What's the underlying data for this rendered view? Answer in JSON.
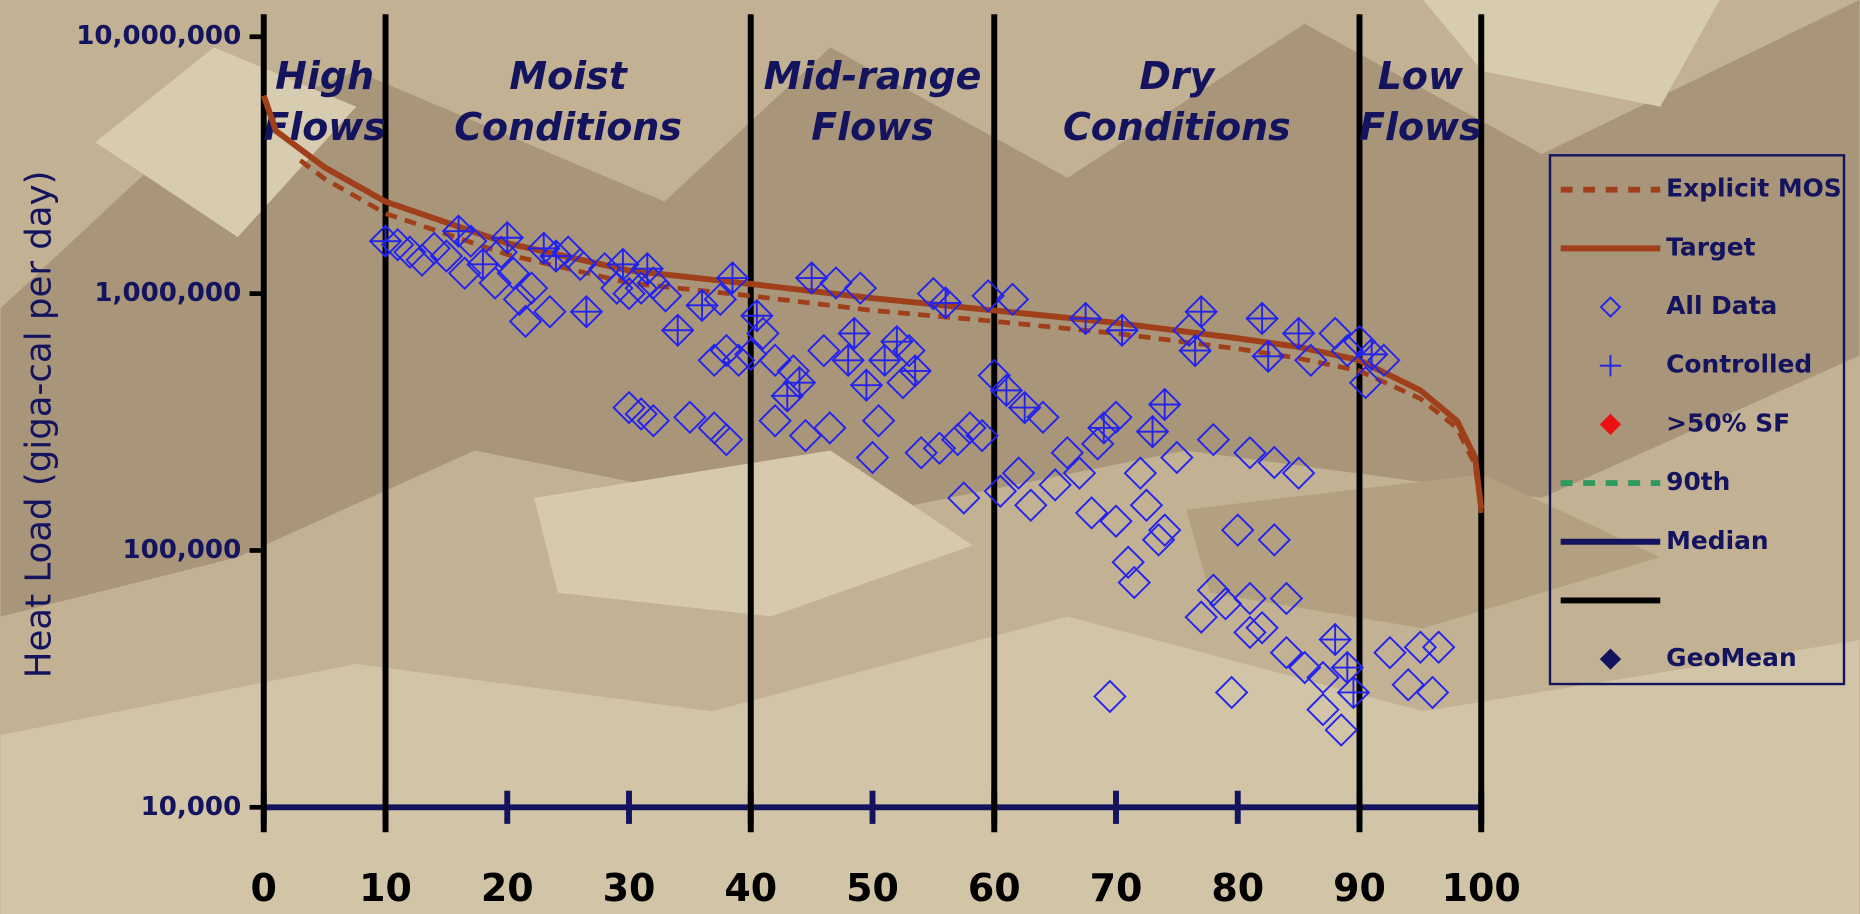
{
  "chart_data": {
    "type": "scatter",
    "y_label": "Heat Load (giga-cal per day)",
    "log_y": true,
    "xlim": [
      0,
      100
    ],
    "ylim": [
      10000,
      10000000
    ],
    "xticks": [
      0,
      10,
      20,
      30,
      40,
      50,
      60,
      70,
      80,
      90,
      100
    ],
    "yticks": [
      {
        "value": 10000,
        "label": "10,000"
      },
      {
        "value": 100000,
        "label": "100,000"
      },
      {
        "value": 1000000,
        "label": "1,000,000"
      },
      {
        "value": 10000000,
        "label": "10,000,000"
      }
    ],
    "zones": [
      {
        "label": [
          "High",
          "Flows"
        ],
        "from": 0,
        "to": 10
      },
      {
        "label": [
          "Moist",
          "Conditions"
        ],
        "from": 10,
        "to": 40
      },
      {
        "label": [
          "Mid-range",
          "Flows"
        ],
        "from": 40,
        "to": 60
      },
      {
        "label": [
          "Dry",
          "Conditions"
        ],
        "from": 60,
        "to": 90
      },
      {
        "label": [
          "Low",
          "Flows"
        ],
        "from": 90,
        "to": 100
      }
    ],
    "series": [
      {
        "name": "Explicit MOS",
        "color": "#a0401a",
        "style": "dashed",
        "x": [
          3,
          5,
          10,
          20,
          30,
          40,
          50,
          60,
          70,
          80,
          85,
          90,
          95,
          98,
          99.5,
          100
        ],
        "values": [
          3300000,
          2800000,
          2050000,
          1420000,
          1100000,
          980000,
          860000,
          780000,
          700000,
          610000,
          560000,
          500000,
          390000,
          300000,
          215000,
          140000
        ]
      },
      {
        "name": "Target",
        "color": "#a0401a",
        "style": "solid",
        "x": [
          0,
          1,
          5,
          10,
          20,
          30,
          40,
          50,
          60,
          70,
          80,
          85,
          90,
          95,
          98,
          99.5,
          100
        ],
        "values": [
          5900000,
          4300000,
          3100000,
          2280000,
          1570000,
          1230000,
          1090000,
          960000,
          860000,
          770000,
          670000,
          620000,
          550000,
          420000,
          320000,
          230000,
          145000
        ]
      },
      {
        "name": "All Data",
        "color": "#2323ee",
        "style": "diamond",
        "x": [
          10,
          11,
          12,
          13,
          14,
          15,
          16,
          16.5,
          17,
          18,
          19,
          19.5,
          20,
          20.5,
          21,
          21.5,
          22,
          23,
          23.5,
          24,
          25,
          26,
          26.5,
          28,
          29,
          29.5,
          30,
          31,
          31.5,
          32,
          33,
          34,
          36,
          37,
          37.5,
          38,
          38.5,
          39,
          40,
          40.5,
          41,
          42,
          30,
          31,
          32,
          35,
          37,
          38,
          42,
          43,
          43.5,
          44,
          44.5,
          45,
          46,
          46.5,
          47,
          48,
          48.5,
          49,
          49.5,
          50,
          50.5,
          51,
          52,
          52.5,
          53,
          53.5,
          54,
          55,
          55.5,
          56,
          57,
          57.5,
          58,
          59,
          59.5,
          60,
          60.5,
          61,
          61.5,
          62,
          62.5,
          63,
          64,
          65,
          66,
          67,
          67.5,
          68,
          68.5,
          69,
          70,
          70,
          70.5,
          71,
          71.5,
          72,
          72.5,
          73,
          73.5,
          74,
          74,
          75,
          76,
          76.5,
          77,
          77,
          78,
          78,
          79,
          80,
          81,
          81,
          81,
          82,
          82.5,
          82,
          83,
          83,
          84,
          84,
          85,
          85,
          85.5,
          86,
          87,
          87,
          88,
          88,
          88.5,
          89,
          89,
          89.5,
          90,
          90.5,
          91,
          92,
          92.5,
          94,
          95,
          96,
          96.5,
          69.5,
          79.5
        ],
        "values": [
          1600000,
          1550000,
          1450000,
          1350000,
          1500000,
          1400000,
          1750000,
          1200000,
          1600000,
          1300000,
          1100000,
          1450000,
          1650000,
          1200000,
          950000,
          780000,
          1050000,
          1500000,
          850000,
          1400000,
          1450000,
          1300000,
          850000,
          1250000,
          1050000,
          1300000,
          1000000,
          1050000,
          1250000,
          1100000,
          980000,
          720000,
          900000,
          550000,
          950000,
          600000,
          1150000,
          550000,
          580000,
          820000,
          700000,
          550000,
          360000,
          340000,
          320000,
          330000,
          300000,
          270000,
          320000,
          400000,
          500000,
          450000,
          280000,
          1150000,
          600000,
          300000,
          1100000,
          550000,
          700000,
          1050000,
          440000,
          230000,
          320000,
          550000,
          650000,
          450000,
          600000,
          500000,
          240000,
          1000000,
          250000,
          920000,
          270000,
          160000,
          300000,
          280000,
          980000,
          480000,
          170000,
          420000,
          950000,
          200000,
          360000,
          150000,
          330000,
          180000,
          240000,
          200000,
          800000,
          140000,
          260000,
          300000,
          330000,
          130000,
          720000,
          90000,
          75000,
          200000,
          150000,
          290000,
          110000,
          120000,
          370000,
          230000,
          720000,
          600000,
          850000,
          55000,
          270000,
          70000,
          62000,
          120000,
          65000,
          240000,
          48000,
          800000,
          570000,
          50000,
          220000,
          110000,
          65000,
          40000,
          700000,
          200000,
          35000,
          550000,
          32000,
          24000,
          700000,
          45000,
          20000,
          600000,
          35000,
          28000,
          650000,
          450000,
          580000,
          550000,
          40000,
          30000,
          42000,
          28000,
          42000,
          27000,
          28000
        ]
      },
      {
        "name": "Controlled",
        "color": "#2323ee",
        "style": "plus",
        "x": [
          10,
          16,
          18,
          20,
          23,
          24,
          26.5,
          29.5,
          31.5,
          34,
          36,
          38.5,
          40.5,
          43,
          44,
          45,
          48,
          48.5,
          49.5,
          51,
          52,
          53.5,
          56,
          61,
          62.5,
          67.5,
          69,
          70.5,
          73,
          74,
          76.5,
          77,
          82,
          82.5,
          85,
          88,
          89,
          89.5,
          91
        ],
        "values": [
          1600000,
          1750000,
          1300000,
          1650000,
          1500000,
          1400000,
          850000,
          1300000,
          1250000,
          720000,
          900000,
          1150000,
          820000,
          400000,
          450000,
          1150000,
          550000,
          700000,
          440000,
          550000,
          650000,
          500000,
          920000,
          420000,
          360000,
          800000,
          300000,
          720000,
          290000,
          370000,
          600000,
          850000,
          800000,
          570000,
          700000,
          45000,
          35000,
          28000,
          580000
        ]
      },
      {
        "name": ">50% SF",
        "color": "#ee1111",
        "style": "filled-diamond",
        "x": [],
        "values": []
      },
      {
        "name": "90th",
        "color": "#2e9a5e",
        "style": "dashed",
        "x": [],
        "values": []
      },
      {
        "name": "Median",
        "color": "#14145e",
        "style": "solid",
        "x": [],
        "values": []
      },
      {
        "color": "#000000",
        "style": "solid",
        "x": [],
        "values": []
      },
      {
        "name": "GeoMean",
        "color": "#14145e",
        "style": "filled-diamond",
        "x": [],
        "values": []
      }
    ]
  }
}
